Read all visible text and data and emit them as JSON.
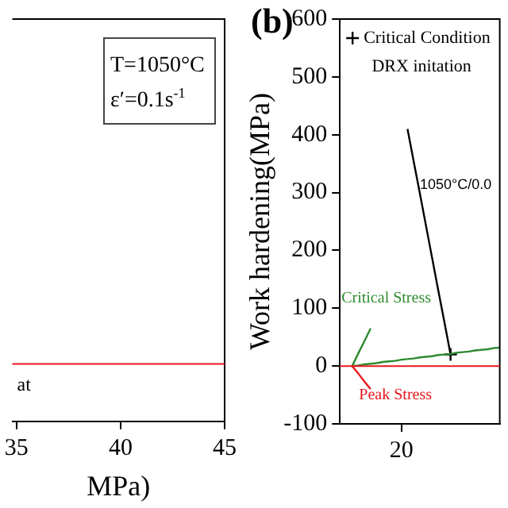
{
  "chart_data": [
    {
      "type": "line",
      "xlabel": "MPa)",
      "xlim": [
        34.8,
        45
      ],
      "xticks": [
        35,
        40,
        45
      ],
      "ylim": [
        -100,
        600
      ],
      "tick_labels": "x",
      "grid": false,
      "legend": false,
      "ref_lines": [
        {
          "axis": "y",
          "value": 0,
          "color": "#e8151b"
        }
      ],
      "annotations": [
        "T=1050°C",
        "ε′=0.1s$^{-1}$",
        "at"
      ]
    },
    {
      "type": "line",
      "title": "(b)",
      "ylabel": "Work hardening(MPa)",
      "ylim": [
        -100,
        600
      ],
      "yticks": [
        -100,
        0,
        100,
        200,
        300,
        400,
        500,
        600
      ],
      "grid": false,
      "legend": "top left",
      "categories": [
        null,
        null,
        null,
        null,
        null,
        null,
        null,
        null,
        null,
        null,
        "20",
        null,
        null,
        null,
        null,
        null,
        null,
        null,
        null,
        null,
        null,
        null,
        null,
        null,
        null,
        null,
        null
      ],
      "ref_lines": [
        {
          "axis": "y",
          "value": 0,
          "color": "#e8151b"
        }
      ],
      "annotations": [
        "DRX initation",
        "1050°C/0.0",
        "Critical Stress",
        "Peak Stress"
      ],
      "series": [
        {
          "type": "line",
          "marker": "none",
          "color": "#2e8b2e",
          "values": [
            null,
            null,
            0,
            1,
            3,
            4,
            5,
            7,
            8,
            9,
            11,
            12,
            13,
            15,
            16,
            17,
            19,
            20,
            21,
            23,
            24,
            25,
            27,
            28,
            29,
            31,
            32
          ]
        },
        {
          "type": "line",
          "marker": "none",
          "color": "#2e8b2e",
          "values": [
            null,
            null,
            0,
            22,
            43,
            65,
            null,
            null,
            null,
            null,
            null,
            null,
            null,
            null,
            null,
            null,
            null,
            null,
            null,
            null,
            null,
            null,
            null,
            null,
            null,
            null,
            null
          ]
        },
        {
          "type": "line",
          "marker": "none",
          "color": "#e8151b",
          "values": [
            null,
            null,
            0,
            -13,
            -27,
            -40,
            null,
            null,
            null,
            null,
            null,
            null,
            null,
            null,
            null,
            null,
            null,
            null,
            null,
            null,
            null,
            null,
            null,
            null,
            null,
            null,
            null
          ]
        },
        {
          "type": "line",
          "marker": "none",
          "color": "#000000",
          "values": [
            null,
            null,
            null,
            null,
            null,
            null,
            null,
            null,
            null,
            null,
            null,
            410,
            354,
            299,
            243,
            187,
            131,
            76,
            20,
            null,
            null,
            null,
            null,
            null,
            null,
            null,
            null
          ]
        },
        {
          "type": "scatter",
          "marker": "cross",
          "name": "Critical Condition",
          "color": "#000000",
          "values": [
            null,
            null,
            null,
            null,
            null,
            null,
            null,
            null,
            null,
            null,
            null,
            null,
            null,
            null,
            null,
            null,
            null,
            null,
            20,
            null,
            null,
            null,
            null,
            null,
            null,
            null,
            null
          ]
        }
      ]
    }
  ]
}
